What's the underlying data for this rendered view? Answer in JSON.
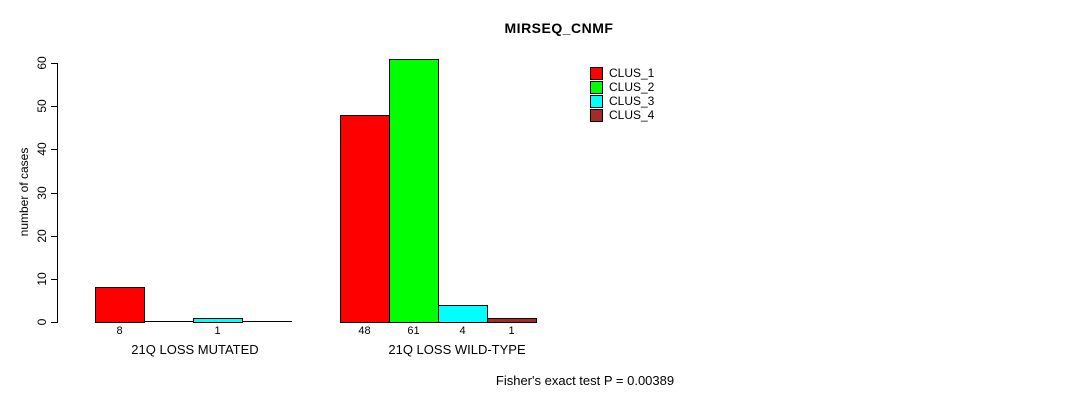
{
  "chart_data": {
    "type": "bar",
    "title": "MIRSEQ_CNMF",
    "ylabel": "number of cases",
    "xlabel": "",
    "categories": [
      "21Q LOSS MUTATED",
      "21Q LOSS WILD-TYPE"
    ],
    "series": [
      {
        "name": "CLUS_1",
        "color": "#ff0000",
        "values": [
          8,
          48
        ]
      },
      {
        "name": "CLUS_2",
        "color": "#00ff00",
        "values": [
          0,
          61
        ]
      },
      {
        "name": "CLUS_3",
        "color": "#00ffff",
        "values": [
          1,
          4
        ]
      },
      {
        "name": "CLUS_4",
        "color": "#a52a2a",
        "values": [
          0,
          1
        ]
      }
    ],
    "bar_value_labels": {
      "show": true,
      "hide_zero": true
    },
    "ylim": [
      0,
      60
    ],
    "yticks": [
      0,
      10,
      20,
      30,
      40,
      50,
      60
    ],
    "grid": false,
    "legend_position": "top-right",
    "annotation": "Fisher's exact test P = 0.00389"
  }
}
